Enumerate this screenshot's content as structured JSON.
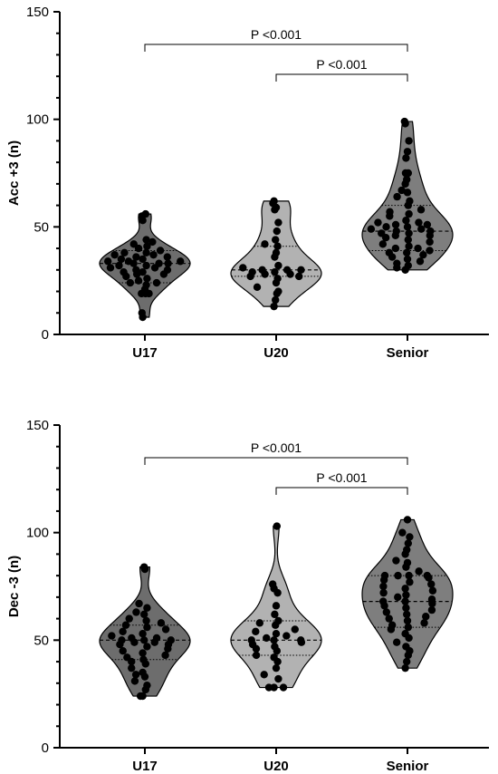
{
  "chart_data": [
    {
      "type": "violin",
      "ylabel": "Acc +3 (n)",
      "ylim": [
        0,
        150
      ],
      "yticks": [
        "0",
        "50",
        "100",
        "150"
      ],
      "categories": [
        "U17",
        "U20",
        "Senior"
      ],
      "colors": [
        "#6d6d6d",
        "#b2b2b2",
        "#7e7e7e"
      ],
      "series": [
        {
          "category": "U17",
          "median": 33,
          "q1": 24,
          "q3": 39,
          "min": 8,
          "max": 56,
          "points": [
            8,
            10,
            19,
            19,
            19,
            21,
            23,
            24,
            24,
            25,
            26,
            27,
            28,
            28,
            29,
            29,
            30,
            30,
            31,
            31,
            32,
            32,
            33,
            33,
            33,
            34,
            34,
            34,
            35,
            35,
            36,
            36,
            37,
            37,
            38,
            38,
            39,
            40,
            41,
            42,
            43,
            44,
            53,
            55,
            56
          ]
        },
        {
          "category": "U20",
          "median": 30,
          "q1": 27,
          "q3": 41,
          "min": 13,
          "max": 62,
          "points": [
            13,
            16,
            19,
            20,
            22,
            24,
            26,
            27,
            27,
            28,
            28,
            29,
            29,
            30,
            30,
            30,
            31,
            32,
            36,
            38,
            41,
            42,
            44,
            48,
            52,
            58,
            59,
            61,
            62
          ]
        },
        {
          "category": "Senior",
          "median": 48,
          "q1": 39,
          "q3": 60,
          "min": 30,
          "max": 99,
          "points": [
            30,
            31,
            32,
            33,
            34,
            35,
            36,
            37,
            38,
            38,
            39,
            40,
            40,
            41,
            42,
            43,
            44,
            45,
            46,
            46,
            47,
            47,
            48,
            48,
            49,
            49,
            50,
            50,
            51,
            51,
            52,
            52,
            53,
            55,
            56,
            57,
            58,
            60,
            62,
            64,
            66,
            67,
            70,
            72,
            75,
            75,
            82,
            85,
            90,
            98,
            99
          ]
        }
      ],
      "comparisons": [
        {
          "from": "U17",
          "to": "Senior",
          "label": "P <0.001"
        },
        {
          "from": "U20",
          "to": "Senior",
          "label": "P <0.001"
        }
      ]
    },
    {
      "type": "violin",
      "ylabel": "Dec -3 (n)",
      "ylim": [
        0,
        150
      ],
      "yticks": [
        "0",
        "50",
        "100",
        "150"
      ],
      "categories": [
        "U17",
        "U20",
        "Senior"
      ],
      "colors": [
        "#6d6d6d",
        "#b2b2b2",
        "#7e7e7e"
      ],
      "series": [
        {
          "category": "U17",
          "median": 50,
          "q1": 41,
          "q3": 57,
          "min": 24,
          "max": 84,
          "points": [
            24,
            24,
            27,
            29,
            31,
            33,
            34,
            35,
            37,
            39,
            40,
            41,
            42,
            43,
            44,
            45,
            46,
            47,
            48,
            48,
            49,
            49,
            50,
            50,
            50,
            51,
            51,
            52,
            53,
            54,
            55,
            56,
            57,
            58,
            59,
            60,
            62,
            63,
            65,
            67,
            83,
            84
          ]
        },
        {
          "category": "U20",
          "median": 50,
          "q1": 43,
          "q3": 59,
          "min": 28,
          "max": 103,
          "points": [
            28,
            28,
            28,
            32,
            34,
            37,
            40,
            42,
            43,
            45,
            46,
            47,
            48,
            49,
            50,
            50,
            50,
            51,
            52,
            53,
            54,
            55,
            57,
            58,
            59,
            62,
            66,
            72,
            74,
            76,
            103
          ]
        },
        {
          "category": "Senior",
          "median": 68,
          "q1": 56,
          "q3": 80,
          "min": 37,
          "max": 106,
          "points": [
            37,
            40,
            43,
            45,
            47,
            49,
            51,
            53,
            55,
            56,
            57,
            58,
            59,
            60,
            61,
            62,
            63,
            64,
            65,
            66,
            67,
            68,
            68,
            69,
            70,
            71,
            72,
            73,
            74,
            75,
            76,
            77,
            78,
            79,
            80,
            80,
            80,
            80,
            82,
            84,
            86,
            87,
            90,
            92,
            95,
            98,
            100,
            106
          ]
        }
      ],
      "comparisons": [
        {
          "from": "U17",
          "to": "Senior",
          "label": "P <0.001"
        },
        {
          "from": "U20",
          "to": "Senior",
          "label": "P <0.001"
        }
      ]
    }
  ]
}
